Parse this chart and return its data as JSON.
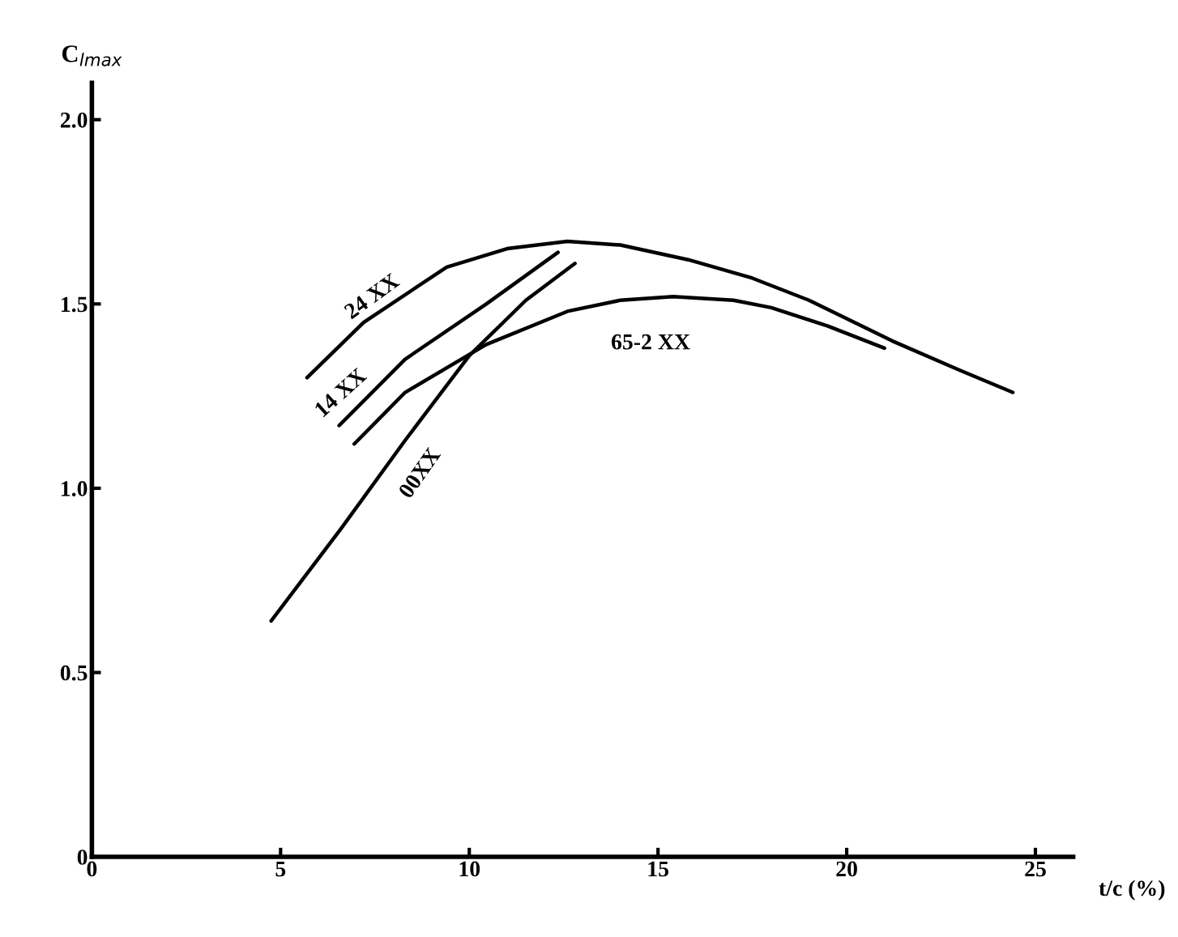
{
  "chart_data": {
    "type": "line",
    "xlabel": "t/c (%)",
    "ylabel": "C$_{lmax}$",
    "xlim": [
      0,
      26
    ],
    "xticks": [
      0,
      5,
      10,
      15,
      20,
      25
    ],
    "ylim": [
      0,
      2.1
    ],
    "yticks": [
      0,
      0.5,
      {
        "value": 1,
        "label": "1.0"
      },
      {
        "value": 1.5,
        "label": "1.5"
      },
      {
        "value": 2,
        "label": "2.0"
      }
    ],
    "grid": false,
    "legend": false,
    "marker": "none",
    "line_style": "solid",
    "series": [
      {
        "name": "24 XX",
        "color": "#000000",
        "x": [
          5.7,
          7.2,
          9.4,
          11.0,
          12.6,
          14.0,
          15.8,
          17.5,
          19.0,
          21.2,
          23.0,
          24.4
        ],
        "values": [
          1.3,
          1.45,
          1.6,
          1.65,
          1.67,
          1.66,
          1.62,
          1.57,
          1.51,
          1.4,
          1.32,
          1.26
        ]
      },
      {
        "name": "14 XX",
        "color": "#000000",
        "x": [
          6.55,
          8.3,
          10.45,
          12.35
        ],
        "values": [
          1.17,
          1.35,
          1.5,
          1.64
        ]
      },
      {
        "name": "00XX",
        "color": "#000000",
        "x": [
          4.75,
          6.6,
          8.3,
          10.0,
          11.5,
          12.8
        ],
        "values": [
          0.64,
          0.89,
          1.13,
          1.36,
          1.51,
          1.61
        ]
      },
      {
        "name": "65-2 XX",
        "color": "#000000",
        "x": [
          6.95,
          8.3,
          10.45,
          12.6,
          14.0,
          15.4,
          17.0,
          18.0,
          19.5,
          21.0
        ],
        "values": [
          1.12,
          1.26,
          1.39,
          1.48,
          1.51,
          1.52,
          1.51,
          1.49,
          1.44,
          1.38
        ]
      }
    ]
  }
}
